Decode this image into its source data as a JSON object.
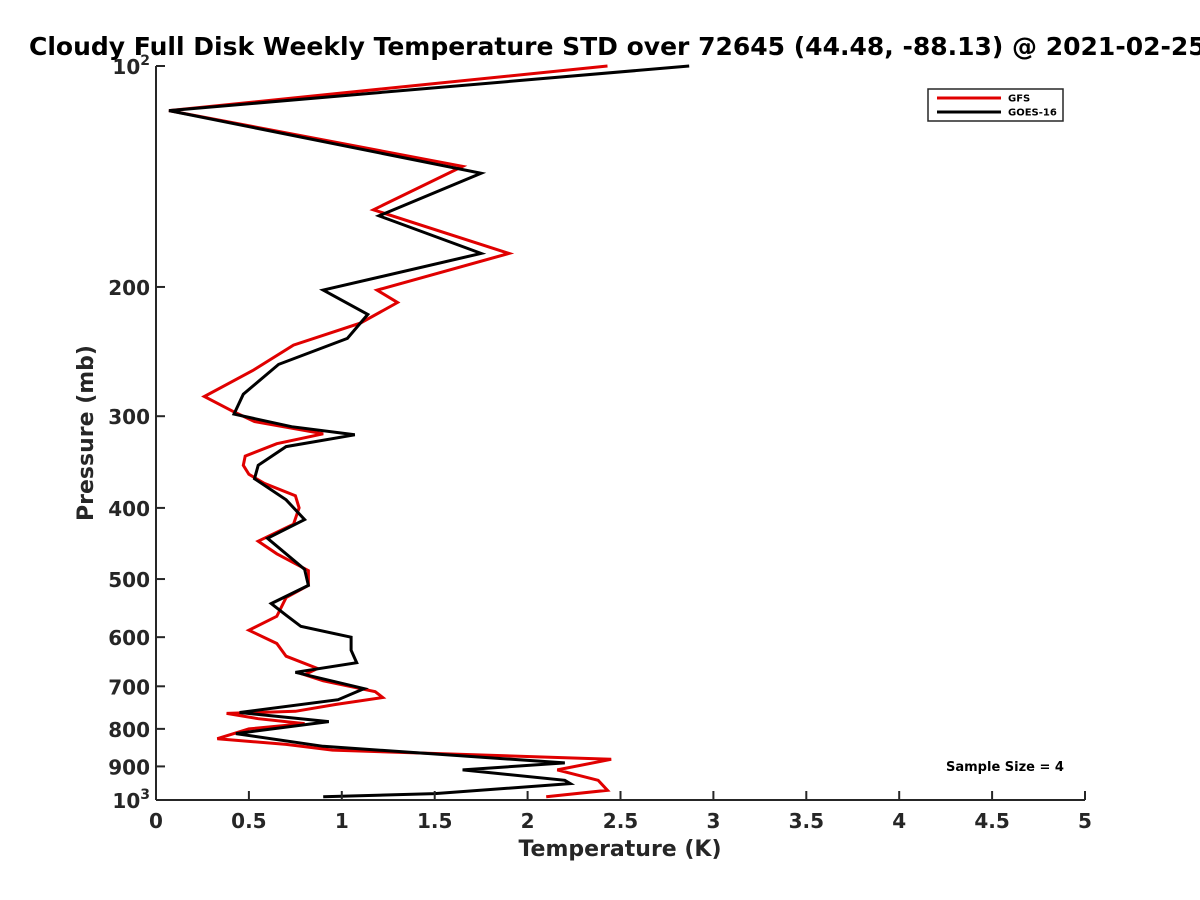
{
  "chart_data": {
    "type": "line",
    "title": "Cloudy Full Disk Weekly Temperature STD over 72645 (44.48, -88.13) @ 2021-02-25",
    "xlabel": "Temperature (K)",
    "ylabel": "Pressure (mb)",
    "xlim": [
      0,
      5
    ],
    "ylim": [
      100,
      1000
    ],
    "yscale": "log",
    "y_reversed": true,
    "grid": false,
    "legend_position": "top-right",
    "x_ticks": [
      0,
      0.5,
      1,
      1.5,
      2,
      2.5,
      3,
      3.5,
      4,
      4.5,
      5
    ],
    "x_tick_labels": [
      "0",
      "0.5",
      "1",
      "1.5",
      "2",
      "2.5",
      "3",
      "3.5",
      "4",
      "4.5",
      "5"
    ],
    "y_ticks": [
      100,
      200,
      300,
      400,
      500,
      600,
      700,
      800,
      900,
      1000
    ],
    "y_tick_labels": [
      {
        "base": "10",
        "exp": "2"
      },
      {
        "base": "200",
        "exp": ""
      },
      {
        "base": "300",
        "exp": ""
      },
      {
        "base": "400",
        "exp": ""
      },
      {
        "base": "500",
        "exp": ""
      },
      {
        "base": "600",
        "exp": ""
      },
      {
        "base": "700",
        "exp": ""
      },
      {
        "base": "800",
        "exp": ""
      },
      {
        "base": "900",
        "exp": ""
      },
      {
        "base": "10",
        "exp": "3"
      }
    ],
    "annotation": "Sample Size = 4",
    "series": [
      {
        "name": "GFS",
        "color": "#e00000",
        "points": [
          [
            2.43,
            100
          ],
          [
            0.07,
            115
          ],
          [
            1.65,
            137
          ],
          [
            1.17,
            157
          ],
          [
            1.9,
            180
          ],
          [
            1.19,
            202
          ],
          [
            1.3,
            210
          ],
          [
            1.1,
            224
          ],
          [
            0.74,
            240
          ],
          [
            0.52,
            260
          ],
          [
            0.26,
            282
          ],
          [
            0.42,
            296
          ],
          [
            0.53,
            305
          ],
          [
            0.9,
            317
          ],
          [
            0.65,
            327
          ],
          [
            0.48,
            340
          ],
          [
            0.47,
            350
          ],
          [
            0.5,
            360
          ],
          [
            0.58,
            370
          ],
          [
            0.75,
            385
          ],
          [
            0.77,
            400
          ],
          [
            0.74,
            421
          ],
          [
            0.55,
            444
          ],
          [
            0.65,
            462
          ],
          [
            0.82,
            487
          ],
          [
            0.82,
            510
          ],
          [
            0.7,
            530
          ],
          [
            0.65,
            562
          ],
          [
            0.5,
            587
          ],
          [
            0.65,
            612
          ],
          [
            0.7,
            637
          ],
          [
            0.87,
            662
          ],
          [
            0.8,
            675
          ],
          [
            0.9,
            688
          ],
          [
            1.18,
            712
          ],
          [
            1.22,
            725
          ],
          [
            0.97,
            741
          ],
          [
            0.75,
            757
          ],
          [
            0.38,
            762
          ],
          [
            0.55,
            775
          ],
          [
            0.8,
            787
          ],
          [
            0.5,
            800
          ],
          [
            0.33,
            825
          ],
          [
            0.7,
            840
          ],
          [
            0.95,
            855
          ],
          [
            2.45,
            880
          ],
          [
            2.16,
            910
          ],
          [
            2.38,
            940
          ],
          [
            2.43,
            970
          ],
          [
            2.1,
            990
          ]
        ]
      },
      {
        "name": "GOES-16",
        "color": "#000000",
        "points": [
          [
            2.87,
            100
          ],
          [
            0.07,
            115
          ],
          [
            1.75,
            140
          ],
          [
            1.2,
            160
          ],
          [
            1.75,
            180
          ],
          [
            0.9,
            202
          ],
          [
            1.14,
            218
          ],
          [
            1.03,
            235
          ],
          [
            0.66,
            255
          ],
          [
            0.47,
            280
          ],
          [
            0.42,
            298
          ],
          [
            0.73,
            310
          ],
          [
            1.07,
            318
          ],
          [
            0.7,
            330
          ],
          [
            0.55,
            350
          ],
          [
            0.53,
            365
          ],
          [
            0.7,
            390
          ],
          [
            0.8,
            415
          ],
          [
            0.6,
            440
          ],
          [
            0.8,
            485
          ],
          [
            0.82,
            510
          ],
          [
            0.62,
            540
          ],
          [
            0.7,
            560
          ],
          [
            0.78,
            580
          ],
          [
            1.05,
            600
          ],
          [
            1.05,
            625
          ],
          [
            1.08,
            650
          ],
          [
            0.75,
            670
          ],
          [
            1.12,
            705
          ],
          [
            0.98,
            730
          ],
          [
            0.45,
            760
          ],
          [
            0.93,
            782
          ],
          [
            0.43,
            812
          ],
          [
            0.9,
            845
          ],
          [
            2.2,
            890
          ],
          [
            1.65,
            910
          ],
          [
            2.2,
            940
          ],
          [
            2.23,
            950
          ],
          [
            1.5,
            980
          ],
          [
            0.9,
            990
          ]
        ]
      }
    ]
  }
}
